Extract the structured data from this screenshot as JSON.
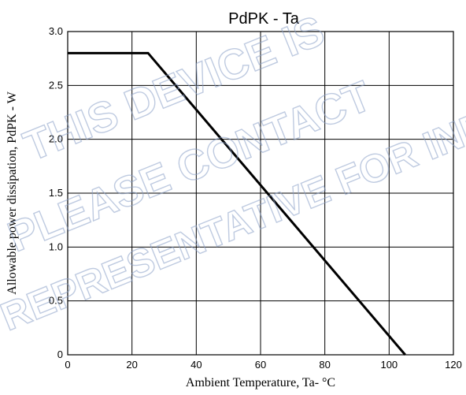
{
  "watermark": {
    "lines": [
      "THIS DEVICE IS",
      "PLEASE CONTACT",
      "REPRESENTATIVE FOR INF"
    ],
    "color": "#8aa0c8"
  },
  "chart_data": {
    "type": "line",
    "title": "PdPK - Ta",
    "xlabel": "Ambient Temperature, Ta- °C",
    "ylabel": "Allowable power dissipation, PdPK - W",
    "xlim": [
      0,
      120
    ],
    "ylim": [
      0,
      3.0
    ],
    "x_ticks": [
      0,
      20,
      40,
      60,
      80,
      100,
      120
    ],
    "x_tick_labels": [
      "0",
      "20",
      "40",
      "60",
      "80",
      "100",
      "120"
    ],
    "y_ticks": [
      0,
      0.5,
      1.0,
      1.5,
      2.0,
      2.5,
      3.0
    ],
    "y_tick_labels": [
      "0",
      "0.5",
      "1.0",
      "1.5",
      "2.0",
      "2.5",
      "3.0"
    ],
    "grid": true,
    "legend": "none",
    "series": [
      {
        "color": "#000000",
        "x": [
          0,
          25,
          105
        ],
        "y": [
          2.8,
          2.8,
          0
        ]
      }
    ]
  }
}
